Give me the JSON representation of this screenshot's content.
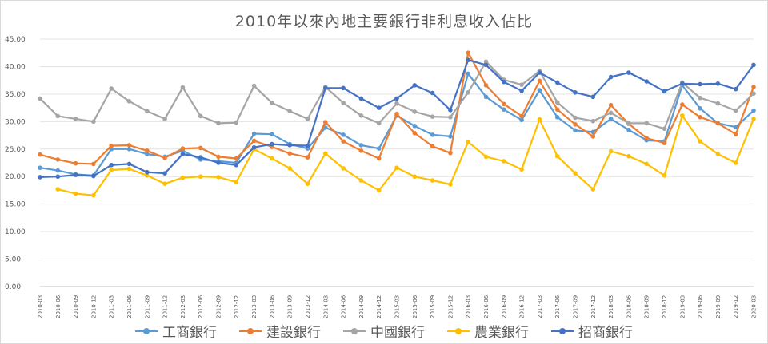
{
  "chart_data": {
    "type": "line",
    "title": "2010年以來內地主要銀行非利息收入佔比",
    "xlabel": "",
    "ylabel": "",
    "ylim": [
      0,
      45
    ],
    "yticks": [
      "0.00",
      "5.00",
      "10.00",
      "15.00",
      "20.00",
      "25.00",
      "30.00",
      "35.00",
      "40.00",
      "45.00"
    ],
    "grid": true,
    "legend_position": "bottom",
    "x": [
      "2010-03",
      "2010-06",
      "2010-09",
      "2010-12",
      "2011-03",
      "2011-06",
      "2011-09",
      "2011-12",
      "2012-03",
      "2012-06",
      "2012-09",
      "2012-12",
      "2013-03",
      "2013-06",
      "2013-09",
      "2013-12",
      "2014-03",
      "2014-06",
      "2014-09",
      "2014-12",
      "2015-03",
      "2015-06",
      "2015-09",
      "2015-12",
      "2016-03",
      "2016-06",
      "2016-09",
      "2016-12",
      "2017-03",
      "2017-06",
      "2017-09",
      "2017-12",
      "2018-03",
      "2018-06",
      "2018-09",
      "2018-12",
      "2019-03",
      "2019-06",
      "2019-09",
      "2019-12",
      "2020-03"
    ],
    "series": [
      {
        "name": "工商銀行",
        "color": "#5b9bd5",
        "values": [
          21.6,
          21.1,
          20.4,
          20.2,
          25.0,
          25.0,
          24.1,
          23.6,
          24.7,
          23.1,
          22.8,
          22.5,
          27.8,
          27.7,
          25.9,
          25.1,
          28.9,
          27.6,
          25.7,
          25.1,
          31.1,
          29.2,
          27.6,
          27.3,
          38.7,
          34.5,
          32.2,
          30.3,
          35.7,
          30.8,
          28.4,
          28.1,
          30.5,
          28.5,
          26.6,
          26.4,
          36.6,
          32.4,
          29.7,
          29.0,
          32.0
        ]
      },
      {
        "name": "建設銀行",
        "color": "#ed7d31",
        "values": [
          24.0,
          23.1,
          22.4,
          22.3,
          25.6,
          25.7,
          24.7,
          23.4,
          25.1,
          25.2,
          23.6,
          23.3,
          26.5,
          25.4,
          24.2,
          23.5,
          29.9,
          26.4,
          24.7,
          23.3,
          31.4,
          27.9,
          25.5,
          24.3,
          42.5,
          36.6,
          33.2,
          31.0,
          37.4,
          32.2,
          29.5,
          27.3,
          33.0,
          29.6,
          27.0,
          26.1,
          33.1,
          30.8,
          29.7,
          27.7,
          36.3
        ]
      },
      {
        "name": "中國銀行",
        "color": "#a5a5a5",
        "values": [
          34.2,
          31.0,
          30.5,
          30.0,
          36.0,
          33.7,
          31.9,
          30.5,
          36.2,
          31.0,
          29.7,
          29.8,
          36.5,
          33.4,
          31.9,
          30.5,
          36.3,
          33.4,
          31.1,
          29.7,
          33.3,
          31.8,
          30.9,
          30.8,
          35.3,
          40.9,
          37.6,
          36.7,
          39.2,
          33.5,
          30.7,
          30.1,
          31.6,
          29.7,
          29.7,
          28.7,
          37.1,
          34.3,
          33.3,
          32.0,
          35.1
        ]
      },
      {
        "name": "農業銀行",
        "color": "#ffc000",
        "values": [
          null,
          17.7,
          16.9,
          16.6,
          21.2,
          21.4,
          20.2,
          18.7,
          19.8,
          20.0,
          19.9,
          19.0,
          25.0,
          23.3,
          21.5,
          18.7,
          24.2,
          21.5,
          19.3,
          17.5,
          21.6,
          20.0,
          19.3,
          18.6,
          26.3,
          23.6,
          22.8,
          21.3,
          30.4,
          23.7,
          20.6,
          17.7,
          24.6,
          23.7,
          22.3,
          20.2,
          31.1,
          26.4,
          24.1,
          22.5,
          30.5
        ]
      },
      {
        "name": "招商銀行",
        "color": "#4472c4",
        "values": [
          19.9,
          20.0,
          20.3,
          20.1,
          22.1,
          22.3,
          20.8,
          20.6,
          24.1,
          23.5,
          22.5,
          22.1,
          25.3,
          25.9,
          25.7,
          25.6,
          36.1,
          36.1,
          34.2,
          32.5,
          34.2,
          36.6,
          35.2,
          32.1,
          41.2,
          40.3,
          37.2,
          35.6,
          38.9,
          37.1,
          35.3,
          34.5,
          38.1,
          38.9,
          37.3,
          35.5,
          36.9,
          36.8,
          36.9,
          35.9,
          40.3
        ]
      }
    ]
  }
}
